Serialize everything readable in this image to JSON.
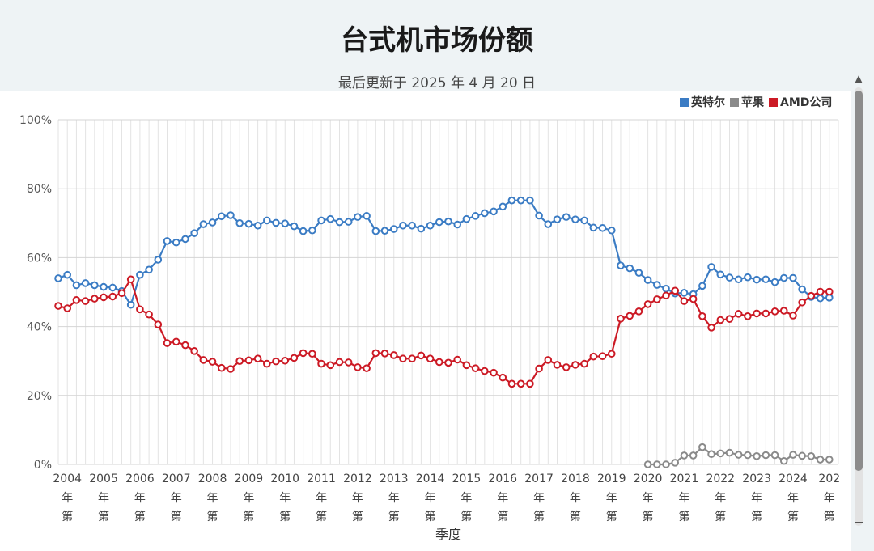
{
  "title": "台式机市场份额",
  "subtitle": "最后更新于 2025 年 4 月 20 日",
  "chart_data": {
    "type": "line",
    "title": "台式机市场份额",
    "subtitle": "最后更新于 2025 年 4 月 20 日",
    "xlabel": "季度",
    "ylabel": "",
    "ylim": [
      0,
      100
    ],
    "y_ticks": [
      "0%",
      "20%",
      "40%",
      "60%",
      "80%",
      "100%"
    ],
    "x_ticks": [
      "2004",
      "2005",
      "2006",
      "2007",
      "2008",
      "2009",
      "2010",
      "2011",
      "2012",
      "2013",
      "2014",
      "2015",
      "2016",
      "2017",
      "2018",
      "2019",
      "2020",
      "2021",
      "2022",
      "2023",
      "2024",
      "202"
    ],
    "tick_suffix": [
      "年",
      "第"
    ],
    "x_start": 2003.75,
    "points_per_year": 4,
    "grid": true,
    "legend_position": "top-right",
    "series": [
      {
        "name": "英特尔",
        "color": "#3b7cc4",
        "x_offset": 0,
        "values": [
          54,
          55,
          52,
          52.6,
          52,
          51.5,
          51.3,
          50.3,
          46.3,
          55,
          56.5,
          59.4,
          64.8,
          64.4,
          65.4,
          67.1,
          69.7,
          70.2,
          72,
          72.3,
          70,
          69.8,
          69.3,
          70.8,
          70.1,
          69.9,
          69.1,
          67.7,
          67.9,
          70.8,
          71.2,
          70.3,
          70.4,
          71.8,
          72.1,
          67.7,
          67.8,
          68.3,
          69.3,
          69.3,
          68.4,
          69.3,
          70.3,
          70.5,
          69.6,
          71.2,
          72.1,
          72.9,
          73.4,
          74.8,
          76.6,
          76.6,
          76.6,
          72.2,
          69.7,
          71.1,
          71.8,
          71.1,
          70.8,
          68.7,
          68.6,
          67.9,
          57.7,
          56.9,
          55.6,
          53.5,
          52.1,
          51,
          49.6,
          49.8,
          49.4,
          51.8,
          57.3,
          55.1,
          54.2,
          53.7,
          54.3,
          53.6,
          53.7,
          52.9,
          54.1,
          54.1,
          50.8,
          48.6,
          48.2,
          48.4
        ]
      },
      {
        "name": "苹果",
        "color": "#8a8a8a",
        "x_offset": 65,
        "values": [
          0,
          0,
          0,
          0.5,
          2.6,
          2.6,
          5,
          3,
          3.2,
          3.4,
          2.8,
          2.7,
          2.4,
          2.7,
          2.7,
          1,
          2.8,
          2.5,
          2.4,
          1.4,
          1.4
        ]
      },
      {
        "name": "AMD公司",
        "color": "#cc1a25",
        "x_offset": 0,
        "values": [
          46,
          45.3,
          47.7,
          47.4,
          48.1,
          48.5,
          48.7,
          49.7,
          53.7,
          45,
          43.5,
          40.6,
          35.2,
          35.6,
          34.6,
          32.9,
          30.3,
          29.8,
          28,
          27.7,
          30,
          30.2,
          30.7,
          29.2,
          29.9,
          30.1,
          30.9,
          32.3,
          32.1,
          29.2,
          28.8,
          29.7,
          29.6,
          28.2,
          27.9,
          32.3,
          32.2,
          31.7,
          30.7,
          30.7,
          31.6,
          30.7,
          29.7,
          29.5,
          30.4,
          28.8,
          27.9,
          27.1,
          26.6,
          25.2,
          23.4,
          23.4,
          23.4,
          27.8,
          30.3,
          28.9,
          28.2,
          28.9,
          29.2,
          31.3,
          31.4,
          32.1,
          42.3,
          43.1,
          44.4,
          46.5,
          47.9,
          49,
          50.4,
          47.4,
          48,
          43,
          39.7,
          41.9,
          42.2,
          43.7,
          43,
          43.8,
          43.8,
          44.4,
          44.6,
          43.2,
          47,
          48.9,
          50.1,
          50.1
        ]
      }
    ]
  }
}
